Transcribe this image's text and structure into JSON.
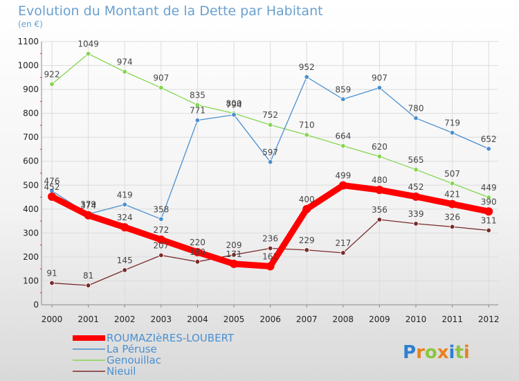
{
  "chart_data": {
    "type": "line",
    "title": "Evolution du Montant de la Dette par Habitant",
    "subtitle": "(en €)",
    "categories": [
      "2000",
      "2001",
      "2002",
      "2003",
      "2004",
      "2005",
      "2006",
      "2007",
      "2008",
      "2009",
      "2010",
      "2011",
      "2012"
    ],
    "ylim": [
      0,
      1100
    ],
    "yticks": [
      0,
      100,
      200,
      300,
      400,
      500,
      600,
      700,
      800,
      900,
      1000,
      1100
    ],
    "grid": true,
    "legend_position": "bottom-left",
    "series": [
      {
        "name": "ROUMAZIèRES-LOUBERT",
        "color": "#ff0000",
        "values": [
          452,
          374,
          324,
          272,
          220,
          171,
          161,
          400,
          499,
          480,
          452,
          421,
          390
        ]
      },
      {
        "name": "La Péruse",
        "color": "#4a8fd0",
        "values": [
          476,
          379,
          419,
          358,
          771,
          794,
          597,
          952,
          859,
          907,
          780,
          719,
          652
        ]
      },
      {
        "name": "Genouillac",
        "color": "#84d64e",
        "values": [
          922,
          1049,
          974,
          907,
          835,
          800,
          752,
          710,
          664,
          620,
          565,
          507,
          449
        ]
      },
      {
        "name": "Nieuil",
        "color": "#7a2a2a",
        "values": [
          91,
          81,
          145,
          207,
          180,
          209,
          236,
          229,
          217,
          356,
          339,
          326,
          311
        ]
      }
    ],
    "brand": "Proxiti"
  }
}
